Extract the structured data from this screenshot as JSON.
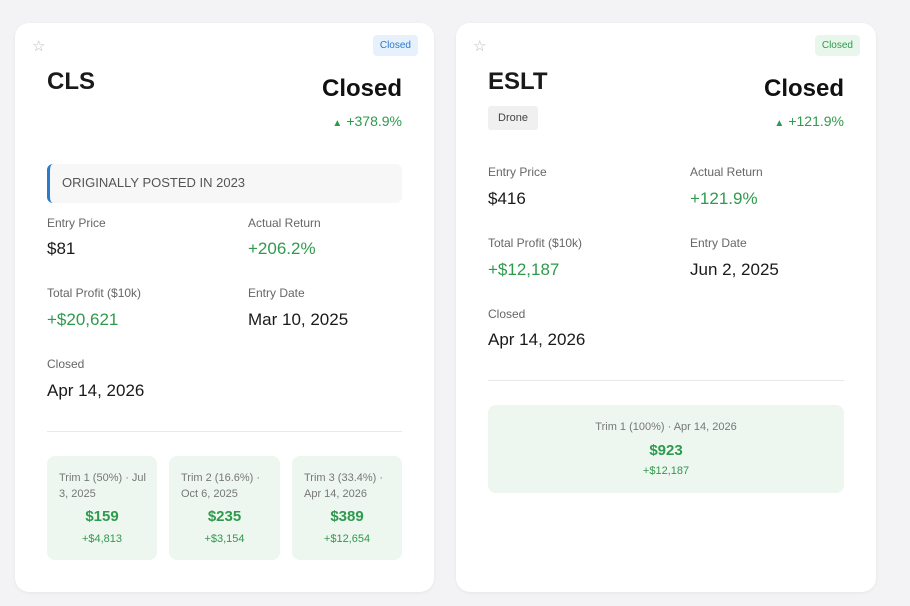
{
  "cards": [
    {
      "ticker": "CLS",
      "badge": "Closed",
      "status": "Closed",
      "return_top": "+378.9%",
      "posted_note": "ORIGINALLY POSTED IN 2023",
      "fields": {
        "entry_price_label": "Entry Price",
        "entry_price": "$81",
        "actual_return_label": "Actual Return",
        "actual_return": "+206.2%",
        "total_profit_label": "Total Profit ($10k)",
        "total_profit": "+$20,621",
        "entry_date_label": "Entry Date",
        "entry_date": "Mar 10, 2025",
        "closed_label": "Closed",
        "closed_date": "Apr 14, 2026"
      },
      "trims": [
        {
          "label": "Trim 1 (50%) · Jul 3, 2025",
          "price": "$159",
          "gain": "+$4,813"
        },
        {
          "label": "Trim 2 (16.6%) · Oct 6, 2025",
          "price": "$235",
          "gain": "+$3,154"
        },
        {
          "label": "Trim 3 (33.4%) · Apr 14, 2026",
          "price": "$389",
          "gain": "+$12,654"
        }
      ]
    },
    {
      "ticker": "ESLT",
      "badge": "Closed",
      "status": "Closed",
      "return_top": "+121.9%",
      "tag": "Drone",
      "fields": {
        "entry_price_label": "Entry Price",
        "entry_price": "$416",
        "actual_return_label": "Actual Return",
        "actual_return": "+121.9%",
        "total_profit_label": "Total Profit ($10k)",
        "total_profit": "+$12,187",
        "entry_date_label": "Entry Date",
        "entry_date": "Jun 2, 2025",
        "closed_label": "Closed",
        "closed_date": "Apr 14, 2026"
      },
      "trims": [
        {
          "label": "Trim 1 (100%) · Apr 14, 2026",
          "price": "$923",
          "gain": "+$12,187"
        }
      ]
    }
  ],
  "icons": {
    "star": "star-outline-icon",
    "up": "triangle-up-icon"
  },
  "colors": {
    "positive": "#2f9a4d",
    "accent": "#2a7ad0"
  }
}
